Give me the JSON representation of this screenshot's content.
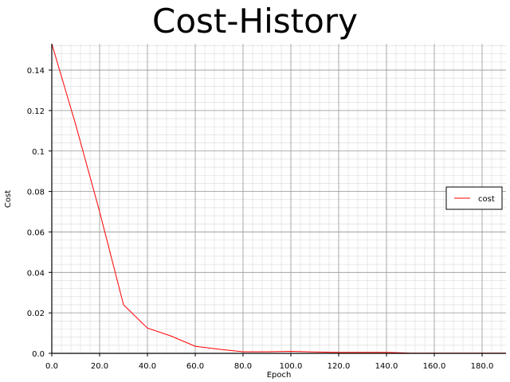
{
  "chart_data": {
    "type": "line",
    "title": "Cost-History",
    "xlabel": "Epoch",
    "ylabel": "Cost",
    "xlim": [
      0,
      190
    ],
    "ylim": [
      0,
      0.153
    ],
    "x_ticks": [
      "0.0",
      "20.0",
      "40.0",
      "60.0",
      "80.0",
      "100.0",
      "120.0",
      "140.0",
      "160.0",
      "180.0"
    ],
    "y_ticks": [
      "0.0",
      "0.02",
      "0.04",
      "0.06",
      "0.08",
      "0.1",
      "0.12",
      "0.14"
    ],
    "grid": true,
    "legend_position": "right",
    "series": [
      {
        "name": "cost",
        "color": "#ff0000",
        "x": [
          0,
          10,
          20,
          30,
          40,
          50,
          60,
          70,
          80,
          90,
          100,
          110,
          120,
          130,
          140,
          150,
          160,
          170,
          180,
          190
        ],
        "y": [
          0.153,
          0.113,
          0.07,
          0.024,
          0.0125,
          0.0085,
          0.0035,
          0.002,
          0.0008,
          0.0008,
          0.001,
          0.0007,
          0.0005,
          0.0005,
          0.0005,
          0.0001,
          0.0001,
          0.0001,
          0.0001,
          0.0001
        ]
      }
    ]
  }
}
